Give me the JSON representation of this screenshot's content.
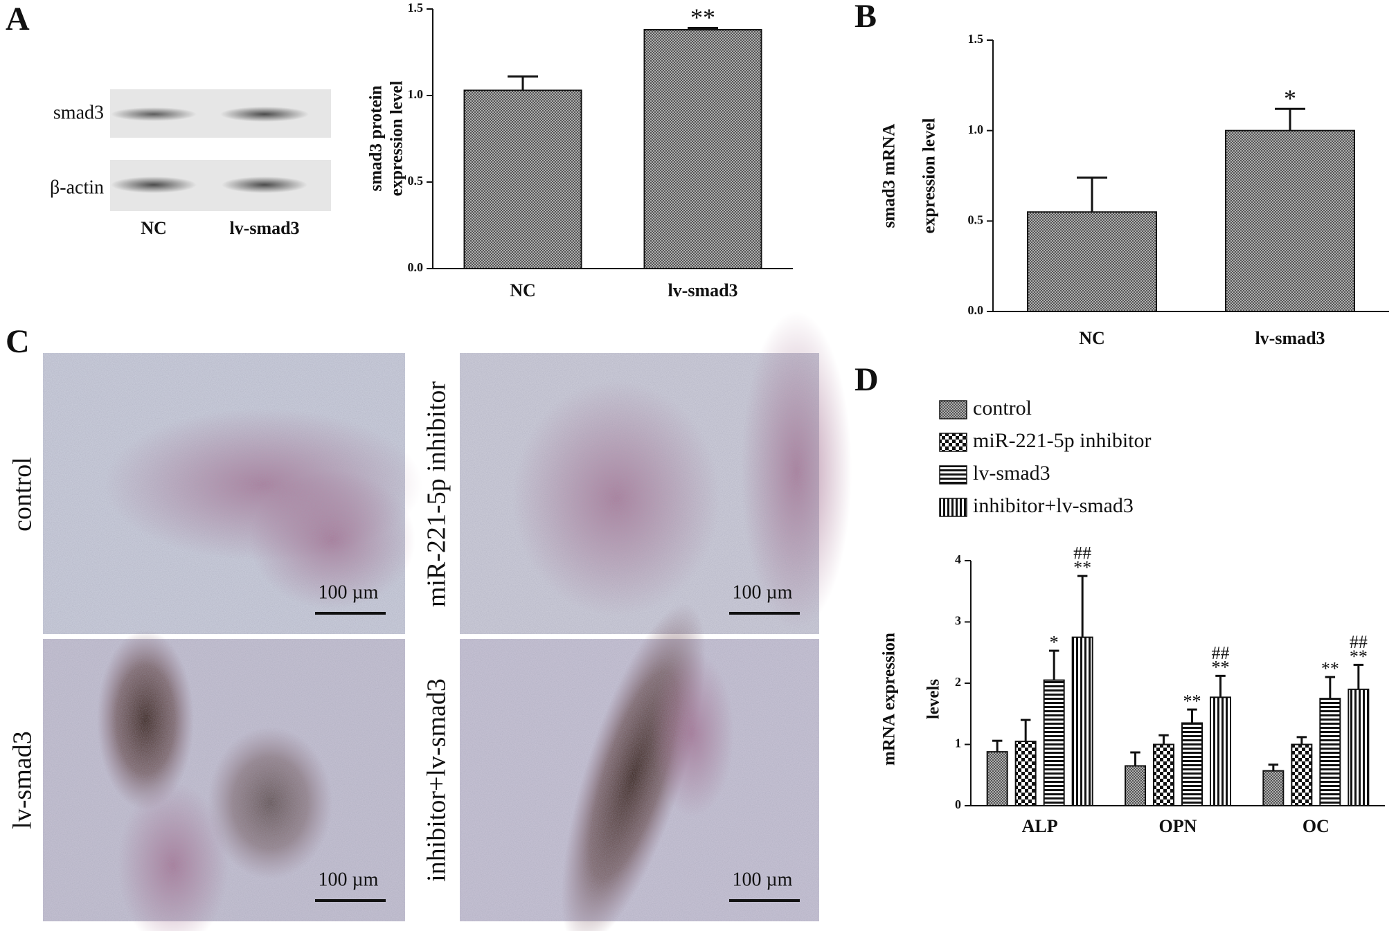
{
  "panel_labels": [
    "A",
    "B",
    "C",
    "D"
  ],
  "blot": {
    "rows": [
      "smad3",
      "β-actin"
    ],
    "lanes": [
      "NC",
      "lv-smad3"
    ]
  },
  "micrographs": {
    "labels": [
      "control",
      "miR-221-5p inhibitor",
      "lv-smad3",
      "inhibitor+lv-smad3"
    ],
    "scale_bar": "100 µm"
  },
  "chart_data": [
    {
      "type": "bar",
      "ylabel": [
        "smad3 protein",
        "expression level"
      ],
      "categories": [
        "NC",
        "lv-smad3"
      ],
      "values": [
        1.03,
        1.38
      ],
      "errors": [
        0.08,
        0.01
      ],
      "annotations": [
        [],
        [
          "**"
        ]
      ],
      "pattern": "crosshatch",
      "ylim": [
        0,
        1.5
      ],
      "yticks": [
        {
          "value": 0,
          "label": "0.0"
        },
        {
          "value": 0.5,
          "label": "0.5"
        },
        {
          "value": 1,
          "label": "1.0"
        },
        {
          "value": 1.5,
          "label": "1.5"
        }
      ]
    },
    {
      "type": "bar",
      "ylabel": [
        "smad3 mRNA",
        "expression level"
      ],
      "categories": [
        "NC",
        "lv-smad3"
      ],
      "values": [
        0.55,
        1.0
      ],
      "errors": [
        0.19,
        0.12
      ],
      "annotations": [
        [],
        [
          "*"
        ]
      ],
      "pattern": "crosshatch",
      "ylim": [
        0,
        1.5
      ],
      "yticks": [
        {
          "value": 0,
          "label": "0.0"
        },
        {
          "value": 0.5,
          "label": "0.5"
        },
        {
          "value": 1,
          "label": "1.0"
        },
        {
          "value": 1.5,
          "label": "1.5"
        }
      ]
    },
    {
      "type": "bar",
      "ylabel": [
        "mRNA expression",
        "levels"
      ],
      "categories": [
        "ALP",
        "OPN",
        "OC"
      ],
      "series": [
        {
          "name": "control",
          "pattern": "crosshatch",
          "values": [
            0.88,
            0.65,
            0.57
          ],
          "errors": [
            0.18,
            0.22,
            0.1
          ],
          "annotations": [
            [],
            [],
            []
          ]
        },
        {
          "name": "miR-221-5p inhibitor",
          "pattern": "checker",
          "values": [
            1.05,
            1.0,
            1.0
          ],
          "errors": [
            0.35,
            0.15,
            0.12
          ],
          "annotations": [
            [],
            [],
            []
          ]
        },
        {
          "name": "lv-smad3",
          "pattern": "hstripes",
          "values": [
            2.05,
            1.35,
            1.75
          ],
          "errors": [
            0.48,
            0.22,
            0.35
          ],
          "annotations": [
            [
              "*"
            ],
            [
              "**"
            ],
            [
              "**"
            ]
          ]
        },
        {
          "name": "inhibitor+lv-smad3",
          "pattern": "vstripes",
          "values": [
            2.75,
            1.77,
            1.9
          ],
          "errors": [
            1.0,
            0.35,
            0.4
          ],
          "annotations": [
            [
              "##",
              "**"
            ],
            [
              "##",
              "**"
            ],
            [
              "##",
              "**"
            ]
          ]
        }
      ],
      "legend": "top-left",
      "ylim": [
        0,
        4
      ],
      "yticks": [
        0,
        1,
        2,
        3,
        4
      ]
    }
  ]
}
